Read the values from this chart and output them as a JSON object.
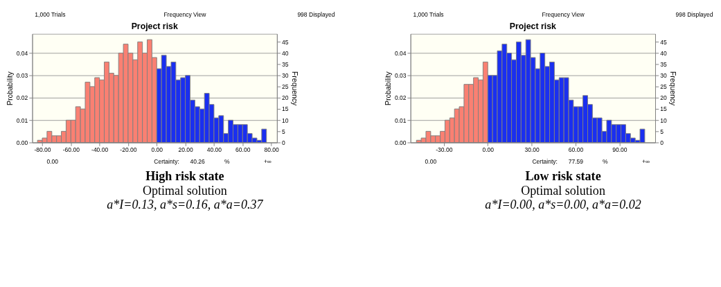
{
  "chart_data": [
    {
      "type": "histogram",
      "title": "Project risk",
      "ylabel": "Probability",
      "y2label": "Frequency",
      "bins": [
        -83.33,
        -80,
        -76.67,
        -73.33,
        -70,
        -66.67,
        -63.33,
        -60,
        -56.67,
        -53.33,
        -50,
        -46.67,
        -43.33,
        -40,
        -36.67,
        -33.33,
        -30,
        -26.67,
        -23.33,
        -20,
        -16.67,
        -13.33,
        -10,
        -6.67,
        -3.33,
        0,
        3.33,
        6.67,
        10,
        13.33,
        16.67,
        20,
        23.33,
        26.67,
        30,
        33.33,
        36.67,
        40,
        43.33,
        46.67,
        50,
        53.33,
        56.67,
        60,
        63.33,
        66.67,
        70,
        73.33,
        76.67
      ],
      "values": [
        0.001,
        0.002,
        0.005,
        0.003,
        0.003,
        0.005,
        0.01,
        0.01,
        0.016,
        0.015,
        0.027,
        0.025,
        0.029,
        0.028,
        0.036,
        0.031,
        0.03,
        0.04,
        0.044,
        0.04,
        0.037,
        0.045,
        0.04,
        0.046,
        0.038,
        0.033,
        0.039,
        0.034,
        0.036,
        0.028,
        0.029,
        0.03,
        0.019,
        0.016,
        0.015,
        0.022,
        0.017,
        0.011,
        0.012,
        0.004,
        0.01,
        0.008,
        0.008,
        0.008,
        0.004,
        0.002,
        0.001,
        0.006
      ],
      "colors": [
        "#fa8072",
        "#fa8072",
        "#fa8072",
        "#fa8072",
        "#fa8072",
        "#fa8072",
        "#fa8072",
        "#fa8072",
        "#fa8072",
        "#fa8072",
        "#fa8072",
        "#fa8072",
        "#fa8072",
        "#fa8072",
        "#fa8072",
        "#fa8072",
        "#fa8072",
        "#fa8072",
        "#fa8072",
        "#fa8072",
        "#fa8072",
        "#fa8072",
        "#fa8072",
        "#fa8072",
        "#fa8072",
        "#1a2ff0",
        "#1a2ff0",
        "#1a2ff0",
        "#1a2ff0",
        "#1a2ff0",
        "#1a2ff0",
        "#1a2ff0",
        "#1a2ff0",
        "#1a2ff0",
        "#1a2ff0",
        "#1a2ff0",
        "#1a2ff0",
        "#1a2ff0",
        "#1a2ff0",
        "#1a2ff0",
        "#1a2ff0",
        "#1a2ff0",
        "#1a2ff0",
        "#1a2ff0",
        "#1a2ff0",
        "#1a2ff0",
        "#1a2ff0",
        "#1a2ff0"
      ],
      "xlim": [
        -87,
        84
      ],
      "xticks": [
        {
          "value": -80,
          "label": "-80.00"
        },
        {
          "value": -60,
          "label": "-60.00"
        },
        {
          "value": -40,
          "label": "-40.00"
        },
        {
          "value": -20,
          "label": "-20.00"
        },
        {
          "value": 0,
          "label": "0.00"
        },
        {
          "value": 20,
          "label": "20.00"
        },
        {
          "value": 40,
          "label": "40.00"
        },
        {
          "value": 60,
          "label": "60.00"
        },
        {
          "value": 80,
          "label": "80.00"
        }
      ],
      "ylim": [
        0,
        0.0486
      ],
      "yticks": [
        {
          "value": 0,
          "label": "0.00"
        },
        0.01,
        0.02,
        0.03,
        0.04
      ],
      "y2lim": [
        0,
        48.6
      ],
      "y2ticks": [
        0,
        5,
        10,
        15,
        20,
        25,
        30,
        35,
        40,
        45
      ],
      "grid": "y",
      "annotations": [
        "1,000 Trials",
        "Frequency View",
        "998 Displayed",
        "0.00",
        "Certainty:",
        "40.26",
        "%",
        "+∞",
        "High risk state",
        "Optimal solution",
        "a*I=0.13, a*s=0.16, a*a=0.37"
      ]
    },
    {
      "type": "histogram",
      "title": "Project risk",
      "ylabel": "Probability",
      "y2label": "Frequency",
      "bins": [
        -48.75,
        -45.5,
        -42.25,
        -39,
        -35.75,
        -32.5,
        -29.25,
        -26,
        -22.75,
        -19.5,
        -16.25,
        -13,
        -9.75,
        -6.5,
        -3.25,
        0,
        3.25,
        6.5,
        9.75,
        13,
        16.25,
        19.5,
        22.75,
        26,
        29.25,
        32.5,
        35.75,
        39,
        42.25,
        45.5,
        48.75,
        52,
        55.25,
        58.5,
        61.75,
        65,
        68.25,
        71.5,
        74.75,
        78,
        81.25,
        84.5,
        87.75,
        91,
        94.25,
        97.5,
        100.75,
        104,
        107.25
      ],
      "values": [
        0.001,
        0.002,
        0.005,
        0.003,
        0.003,
        0.005,
        0.01,
        0.011,
        0.015,
        0.016,
        0.026,
        0.026,
        0.029,
        0.028,
        0.036,
        0.03,
        0.03,
        0.041,
        0.044,
        0.04,
        0.037,
        0.045,
        0.039,
        0.046,
        0.038,
        0.033,
        0.04,
        0.034,
        0.036,
        0.028,
        0.029,
        0.029,
        0.019,
        0.016,
        0.016,
        0.021,
        0.017,
        0.011,
        0.011,
        0.005,
        0.01,
        0.008,
        0.008,
        0.008,
        0.004,
        0.002,
        0.001,
        0.006
      ],
      "colors": [
        "#fa8072",
        "#fa8072",
        "#fa8072",
        "#fa8072",
        "#fa8072",
        "#fa8072",
        "#fa8072",
        "#fa8072",
        "#fa8072",
        "#fa8072",
        "#fa8072",
        "#fa8072",
        "#fa8072",
        "#fa8072",
        "#fa8072",
        "#1a2ff0",
        "#1a2ff0",
        "#1a2ff0",
        "#1a2ff0",
        "#1a2ff0",
        "#1a2ff0",
        "#1a2ff0",
        "#1a2ff0",
        "#1a2ff0",
        "#1a2ff0",
        "#1a2ff0",
        "#1a2ff0",
        "#1a2ff0",
        "#1a2ff0",
        "#1a2ff0",
        "#1a2ff0",
        "#1a2ff0",
        "#1a2ff0",
        "#1a2ff0",
        "#1a2ff0",
        "#1a2ff0",
        "#1a2ff0",
        "#1a2ff0",
        "#1a2ff0",
        "#1a2ff0",
        "#1a2ff0",
        "#1a2ff0",
        "#1a2ff0",
        "#1a2ff0",
        "#1a2ff0",
        "#1a2ff0",
        "#1a2ff0",
        "#1a2ff0"
      ],
      "xlim": [
        -52.8,
        114.4
      ],
      "xticks": [
        {
          "value": -30,
          "label": "-30.00"
        },
        {
          "value": 0,
          "label": "0.00"
        },
        {
          "value": 30,
          "label": "30.00"
        },
        {
          "value": 60,
          "label": "60.00"
        },
        {
          "value": 90,
          "label": "90.00"
        }
      ],
      "ylim": [
        0,
        0.0486
      ],
      "yticks": [
        {
          "value": 0,
          "label": "0.00"
        },
        0.01,
        0.02,
        0.03,
        0.04
      ],
      "y2lim": [
        0,
        48.6
      ],
      "y2ticks": [
        0,
        5,
        10,
        15,
        20,
        25,
        30,
        35,
        40,
        45
      ],
      "grid": "y",
      "annotations": [
        "1,000 Trials",
        "Frequency View",
        "998 Displayed",
        "0.00",
        "Certainty:",
        "77.59",
        "%",
        "+∞",
        "Low risk state",
        "Optimal solution",
        "a*I=0.00, a*s=0.00, a*a=0.02"
      ]
    }
  ]
}
